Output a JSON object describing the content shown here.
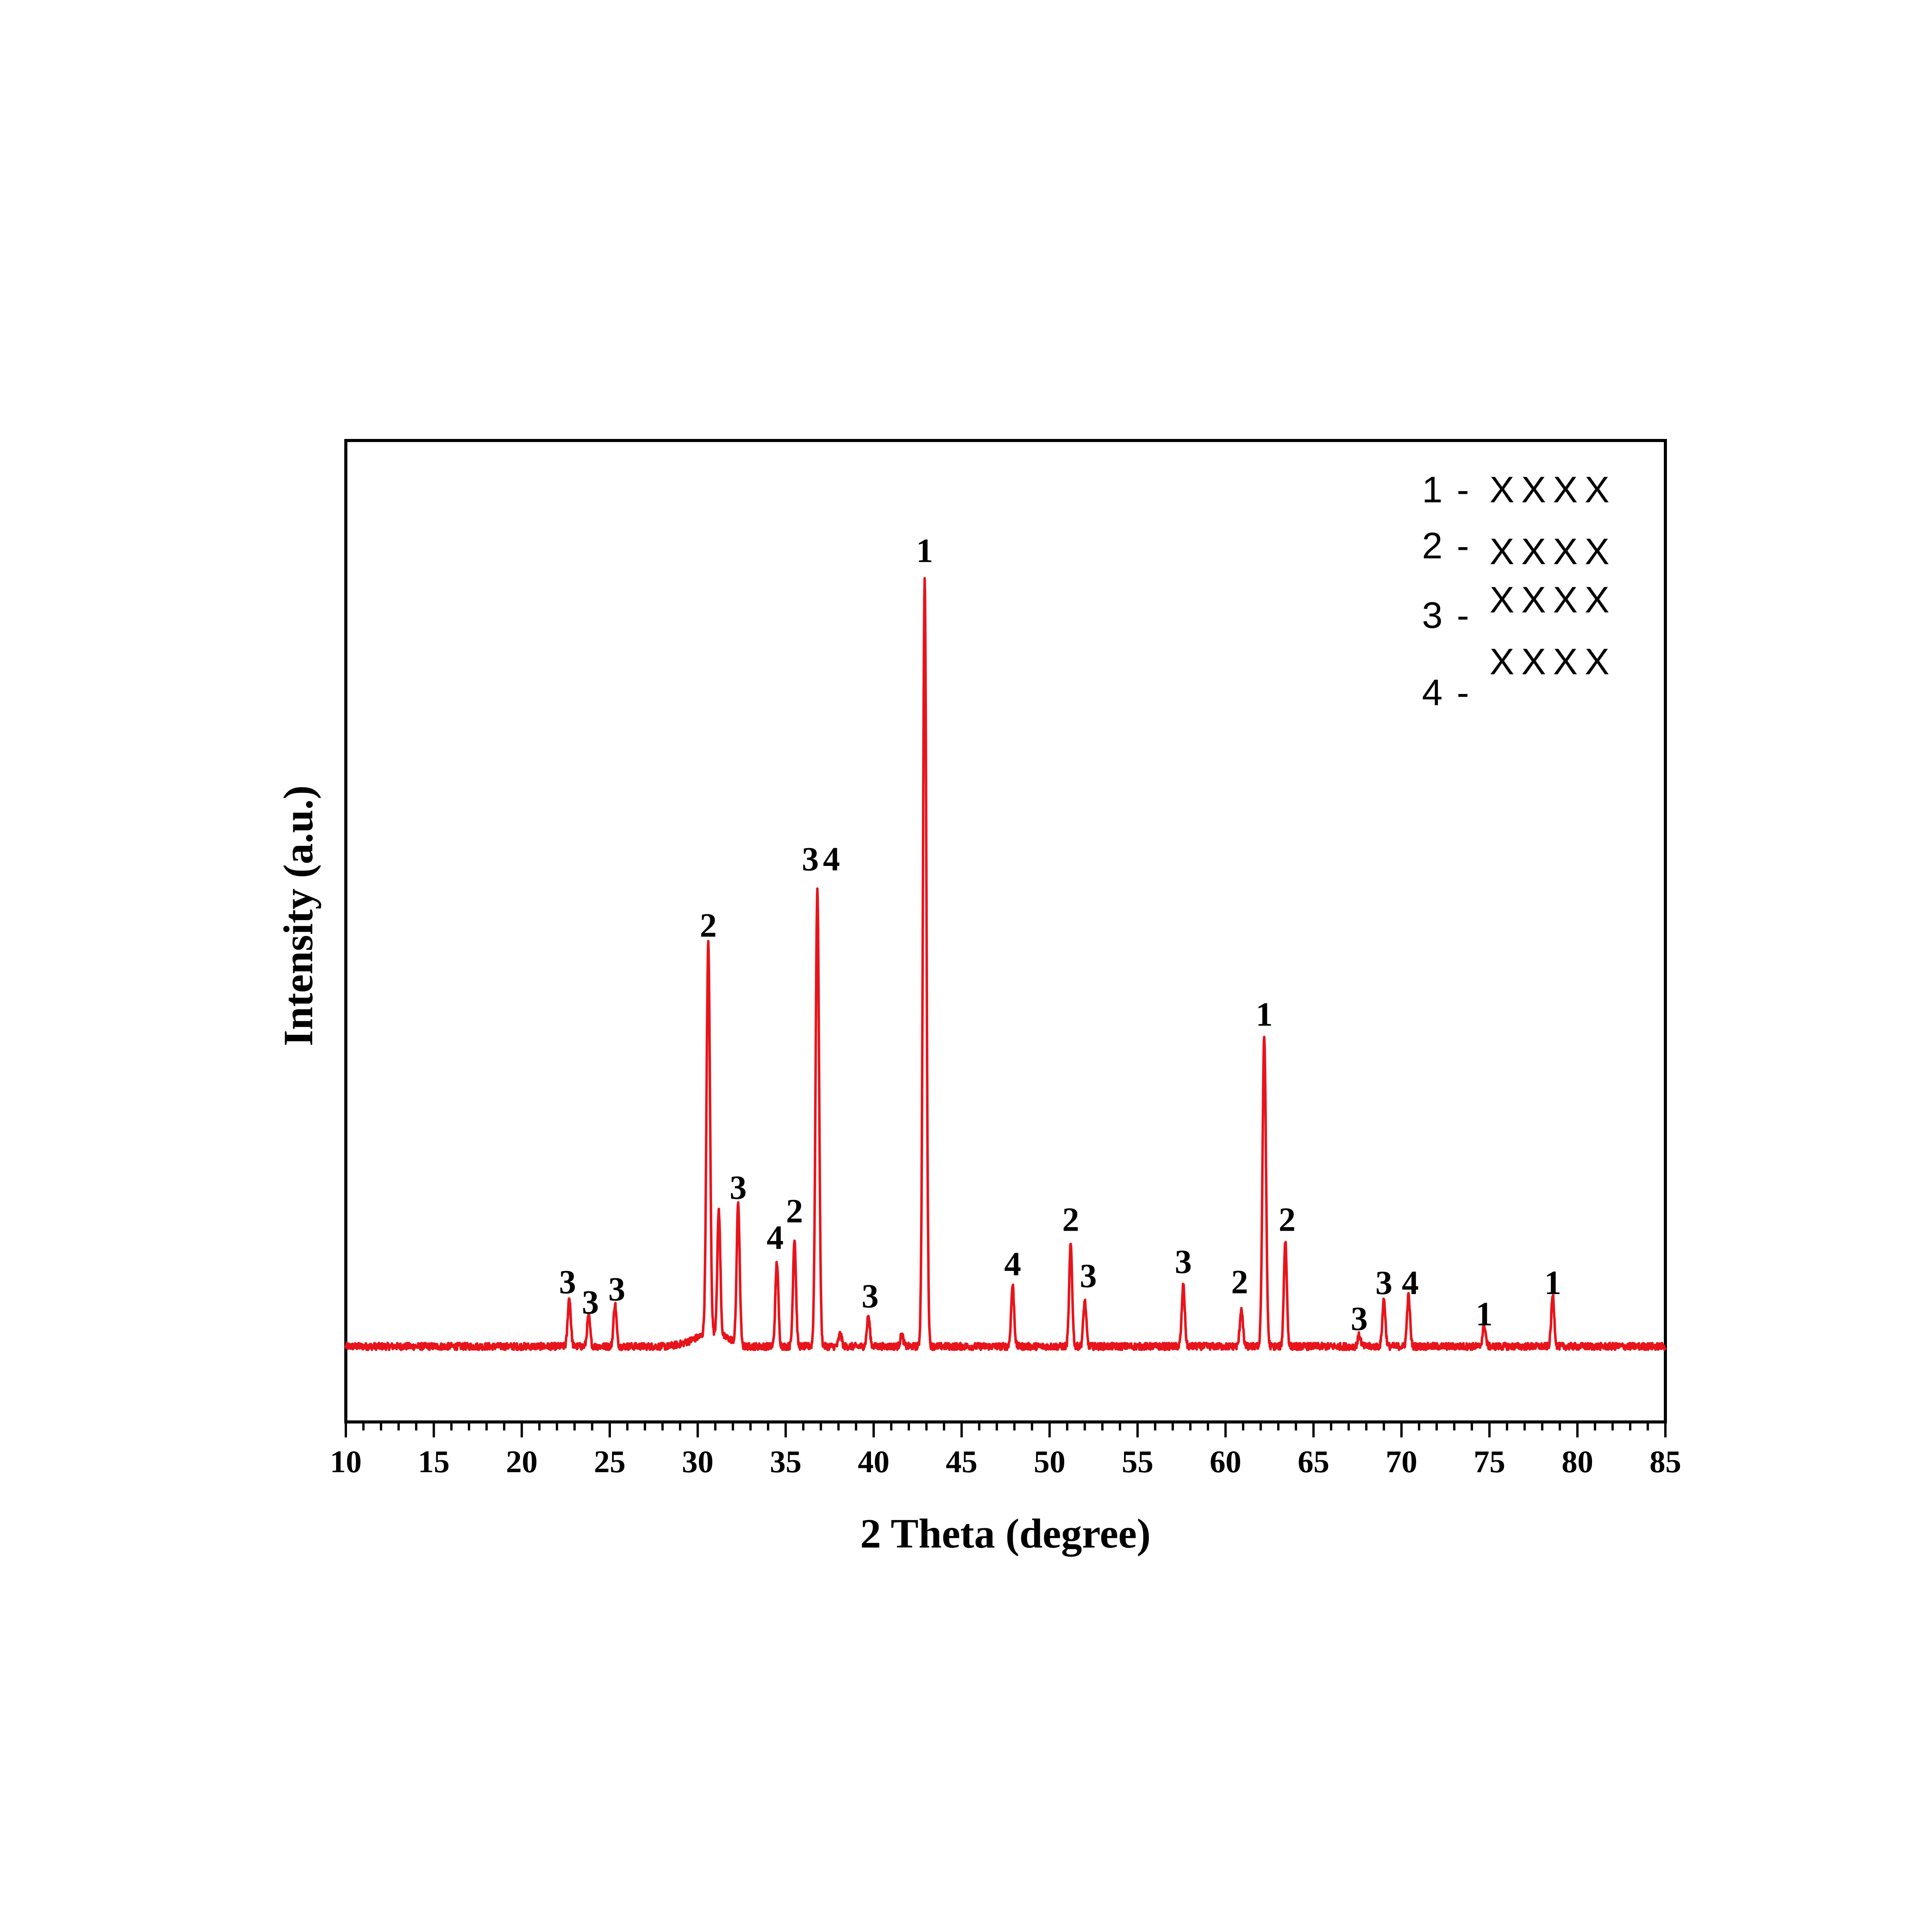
{
  "chart_data": {
    "type": "line",
    "xlabel": "2 Theta (degree)",
    "ylabel": "Intensity (a.u.)",
    "xlim": [
      10,
      85
    ],
    "xticks": [
      10,
      15,
      20,
      25,
      30,
      35,
      40,
      45,
      50,
      55,
      60,
      65,
      70,
      75,
      80,
      85
    ],
    "ylim": [
      0,
      100
    ],
    "y_tick_labels_shown": false,
    "grid": false,
    "legend_placement": "top-right",
    "line_color": "#e8141c",
    "baseline": 2.5,
    "series": [
      {
        "peaks": [
          {
            "x": 22.7,
            "y": 6.2
          },
          {
            "x": 23.8,
            "y": 3.9
          },
          {
            "x": 25.3,
            "y": 5.4
          },
          {
            "x": 30.6,
            "y": 50.0
          },
          {
            "x": 31.2,
            "y": 16.0
          },
          {
            "x": 32.3,
            "y": 18.0
          },
          {
            "x": 34.5,
            "y": 10.8
          },
          {
            "x": 35.5,
            "y": 13.8
          },
          {
            "x": 36.8,
            "y": 58.5
          },
          {
            "x": 38.1,
            "y": 1.6
          },
          {
            "x": 39.7,
            "y": 3.8
          },
          {
            "x": 41.6,
            "y": 1.5
          },
          {
            "x": 42.9,
            "y": 98.0
          },
          {
            "x": 47.9,
            "y": 7.8
          },
          {
            "x": 51.2,
            "y": 13.0
          },
          {
            "x": 52.0,
            "y": 5.8
          },
          {
            "x": 57.6,
            "y": 7.8
          },
          {
            "x": 60.9,
            "y": 4.8
          },
          {
            "x": 62.2,
            "y": 39.5
          },
          {
            "x": 63.4,
            "y": 13.5
          },
          {
            "x": 67.6,
            "y": 1.4
          },
          {
            "x": 69.0,
            "y": 6.0
          },
          {
            "x": 70.4,
            "y": 6.5
          },
          {
            "x": 74.7,
            "y": 2.8
          },
          {
            "x": 78.6,
            "y": 6.5
          }
        ]
      }
    ],
    "annotations": [
      {
        "text": "3",
        "x": 22.6,
        "y": 9.3
      },
      {
        "text": "3",
        "x": 23.9,
        "y": 6.7
      },
      {
        "text": "3",
        "x": 25.4,
        "y": 8.4
      },
      {
        "text": "2",
        "x": 30.6,
        "y": 55.0
      },
      {
        "text": "3",
        "x": 32.3,
        "y": 21.4
      },
      {
        "text": "4",
        "x": 34.4,
        "y": 15.0
      },
      {
        "text": "2",
        "x": 35.5,
        "y": 18.4
      },
      {
        "text": "3",
        "x": 36.4,
        "y": 63.5
      },
      {
        "text": "4",
        "x": 37.6,
        "y": 63.5
      },
      {
        "text": "3",
        "x": 39.8,
        "y": 7.5
      },
      {
        "text": "1",
        "x": 42.9,
        "y": 103.0
      },
      {
        "text": "4",
        "x": 47.9,
        "y": 11.6
      },
      {
        "text": "2",
        "x": 51.2,
        "y": 17.3
      },
      {
        "text": "3",
        "x": 52.2,
        "y": 10.1
      },
      {
        "text": "3",
        "x": 57.6,
        "y": 11.9
      },
      {
        "text": "2",
        "x": 60.8,
        "y": 9.3
      },
      {
        "text": "1",
        "x": 62.2,
        "y": 43.6
      },
      {
        "text": "2",
        "x": 63.5,
        "y": 17.3
      },
      {
        "text": "3",
        "x": 67.6,
        "y": 4.6
      },
      {
        "text": "3",
        "x": 69.0,
        "y": 9.2
      },
      {
        "text": "4",
        "x": 70.5,
        "y": 9.2
      },
      {
        "text": "1",
        "x": 74.7,
        "y": 5.2
      },
      {
        "text": "1",
        "x": 78.6,
        "y": 9.2
      }
    ],
    "legend": [
      {
        "number": "1",
        "dash": "-",
        "text": "XXXX"
      },
      {
        "number": "2",
        "dash": "-",
        "text": "XXXX"
      },
      {
        "number": "3",
        "dash": "-",
        "text": "XXXX"
      },
      {
        "number": "4",
        "dash": "-",
        "text": "XXXX"
      }
    ]
  }
}
